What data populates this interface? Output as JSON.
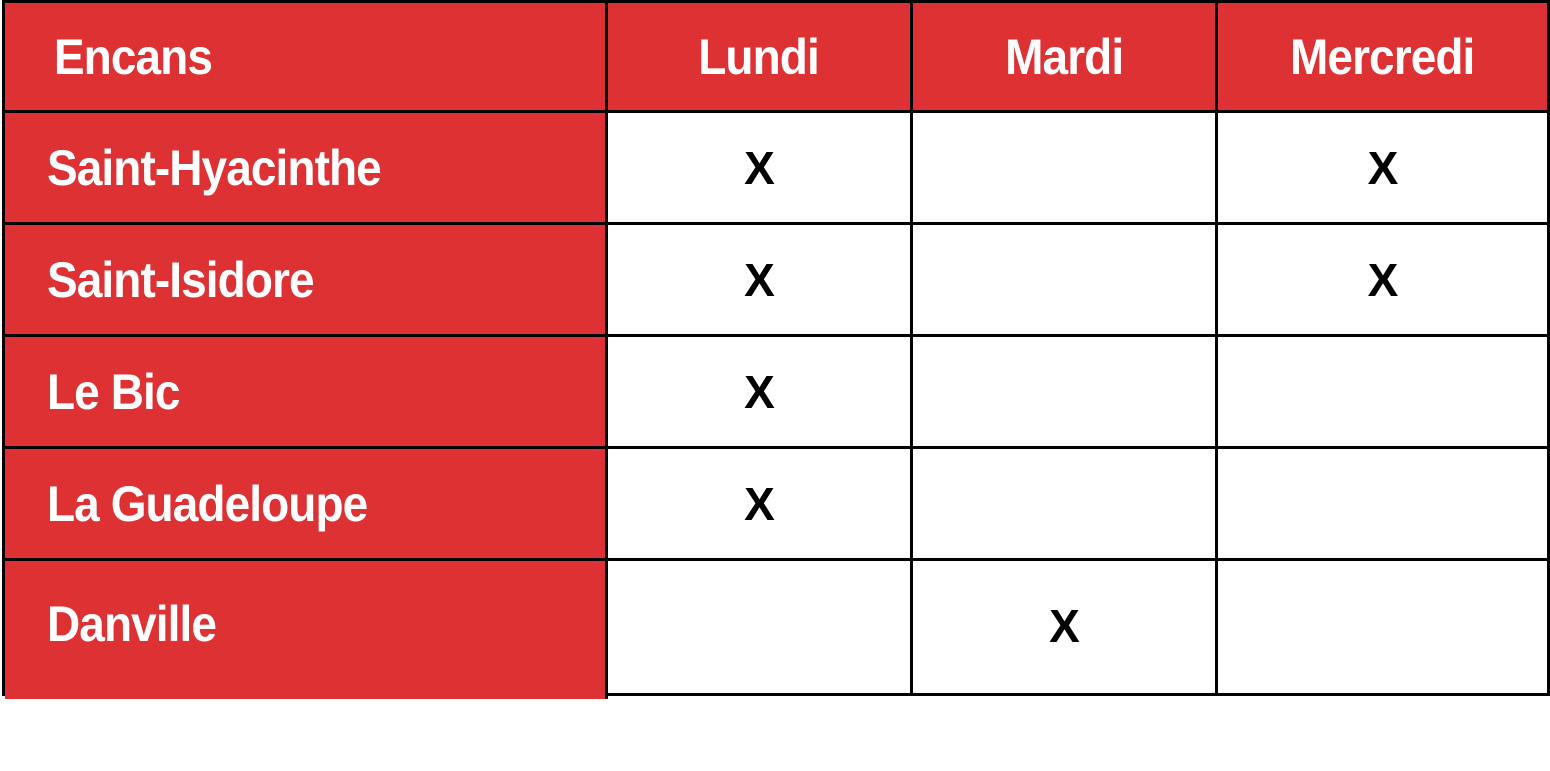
{
  "colors": {
    "header_bg": "#de3134",
    "header_text": "#ffffff",
    "border": "#000000",
    "mark_text": "#000000"
  },
  "table": {
    "headers": [
      "Encans",
      "Lundi",
      "Mardi",
      "Mercredi"
    ],
    "rows": [
      {
        "name": "Saint-Hyacinthe",
        "cells": [
          "X",
          "",
          "X"
        ]
      },
      {
        "name": "Saint-Isidore",
        "cells": [
          "X",
          "",
          "X"
        ]
      },
      {
        "name": "Le Bic",
        "cells": [
          "X",
          "",
          ""
        ]
      },
      {
        "name": "La Guadeloupe",
        "cells": [
          "X",
          "",
          ""
        ]
      },
      {
        "name": "Danville",
        "cells": [
          "",
          "X",
          ""
        ]
      }
    ]
  }
}
